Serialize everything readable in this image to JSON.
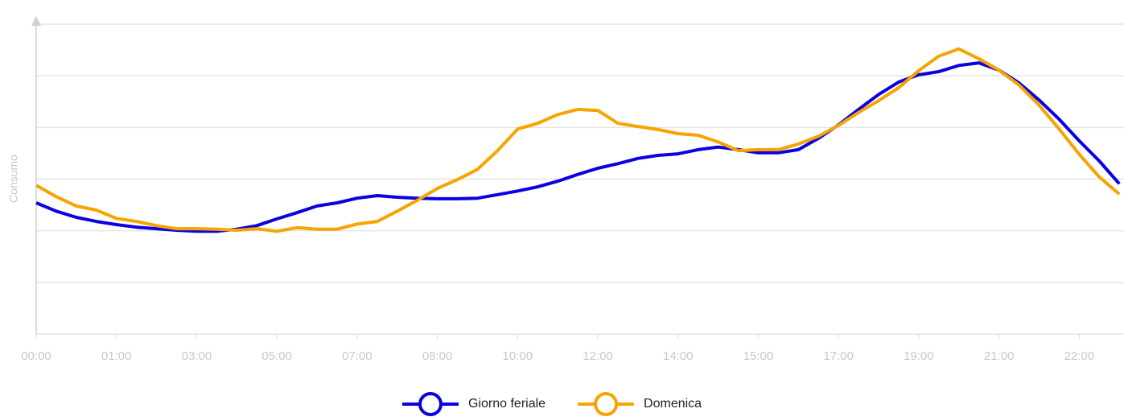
{
  "chart_data": {
    "type": "line",
    "y_label": "Consumo",
    "categories": [
      "00:00",
      null,
      null,
      null,
      "01:00",
      null,
      null,
      null,
      "03:00",
      null,
      null,
      null,
      "05:00",
      null,
      null,
      null,
      "07:00",
      null,
      null,
      null,
      "08:00",
      null,
      null,
      null,
      "10:00",
      null,
      null,
      null,
      "12:00",
      null,
      null,
      null,
      "14:00",
      null,
      null,
      null,
      "15:00",
      null,
      null,
      null,
      "17:00",
      null,
      null,
      null,
      "19:00",
      null,
      null,
      null,
      "21:00",
      null,
      null,
      null,
      "22:00",
      null,
      null
    ],
    "series": [
      {
        "name": "Giorno feriale",
        "color": "#0a00e0",
        "values": [
          2.54,
          2.38,
          2.26,
          2.18,
          2.12,
          2.07,
          2.04,
          2.01,
          1.99,
          1.99,
          2.03,
          2.1,
          2.23,
          2.35,
          2.48,
          2.54,
          2.63,
          2.68,
          2.65,
          2.63,
          2.62,
          2.62,
          2.63,
          2.7,
          2.77,
          2.85,
          2.96,
          3.09,
          3.21,
          3.3,
          3.4,
          3.46,
          3.49,
          3.57,
          3.62,
          3.57,
          3.51,
          3.51,
          3.57,
          3.79,
          4.05,
          4.35,
          4.64,
          4.88,
          5.02,
          5.08,
          5.2,
          5.25,
          5.11,
          4.86,
          4.53,
          4.16,
          3.74,
          3.35,
          2.91
        ]
      },
      {
        "name": "Domenica",
        "color": "#f5a400",
        "values": [
          2.88,
          2.66,
          2.48,
          2.4,
          2.24,
          2.18,
          2.1,
          2.04,
          2.04,
          2.03,
          2.01,
          2.04,
          1.99,
          2.06,
          2.03,
          2.03,
          2.13,
          2.18,
          2.38,
          2.59,
          2.82,
          2.99,
          3.19,
          3.55,
          3.97,
          4.08,
          4.25,
          4.35,
          4.33,
          4.08,
          4.02,
          3.96,
          3.88,
          3.85,
          3.72,
          3.55,
          3.57,
          3.57,
          3.68,
          3.83,
          4.04,
          4.29,
          4.52,
          4.77,
          5.1,
          5.38,
          5.52,
          5.33,
          5.11,
          4.82,
          4.43,
          3.97,
          3.48,
          3.04,
          2.71
        ]
      }
    ],
    "ylim": [
      0,
      6
    ],
    "yticks": [
      0,
      1,
      2,
      3,
      4,
      5,
      6
    ],
    "grid": true,
    "legend": "bottom"
  }
}
